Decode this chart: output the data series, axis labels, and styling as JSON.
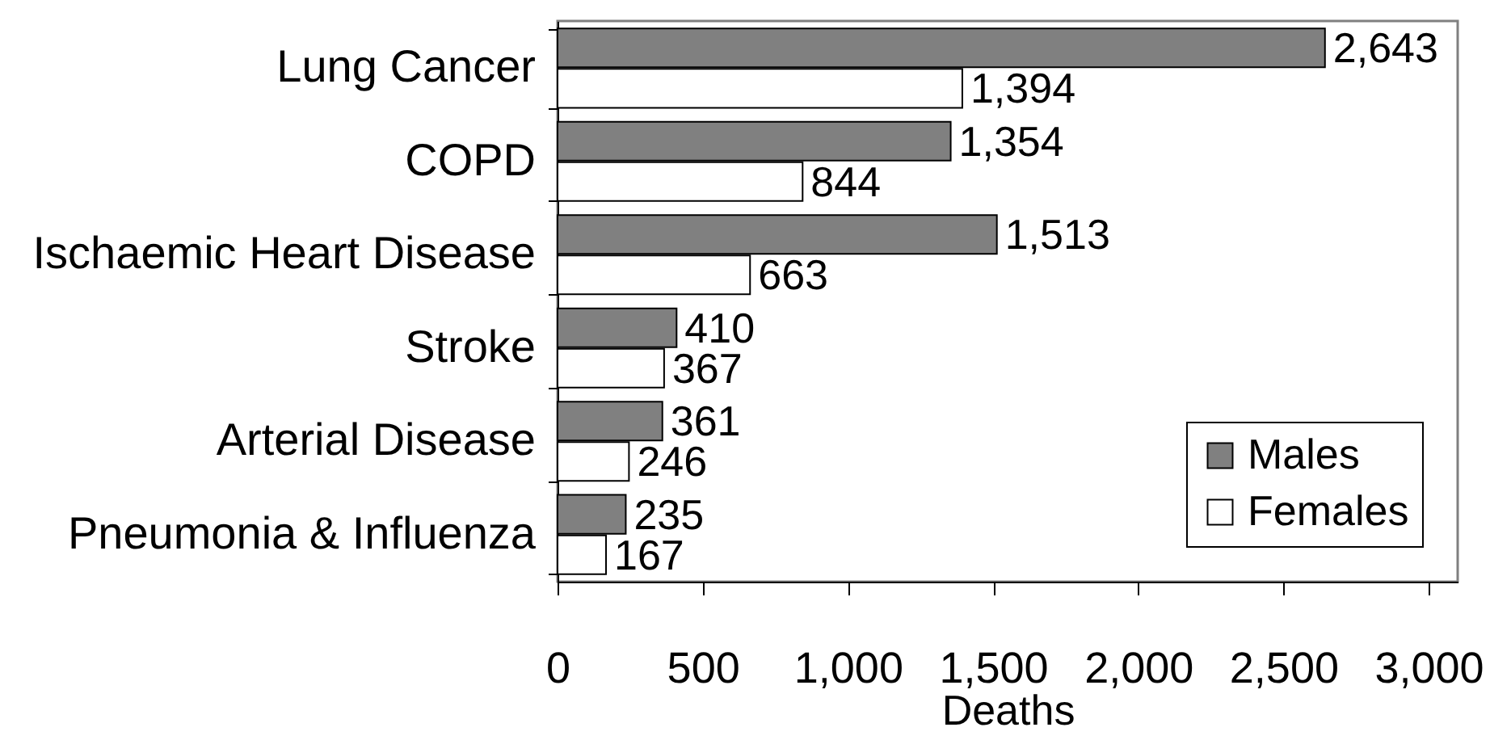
{
  "chart_data": {
    "type": "bar",
    "orientation": "horizontal",
    "categories": [
      "Lung Cancer",
      "COPD",
      "Ischaemic Heart Disease",
      "Stroke",
      "Arterial Disease",
      "Pneumonia & Influenza"
    ],
    "series": [
      {
        "name": "Males",
        "color": "#808080",
        "values": [
          2643,
          1354,
          1513,
          410,
          361,
          235
        ],
        "value_labels": [
          "2,643",
          "1,354",
          "1,513",
          "410",
          "361",
          "235"
        ]
      },
      {
        "name": "Females",
        "color": "#ffffff",
        "values": [
          1394,
          844,
          663,
          367,
          246,
          167
        ],
        "value_labels": [
          "1,394",
          "844",
          "663",
          "367",
          "246",
          "167"
        ]
      }
    ],
    "xlabel": "Deaths",
    "xlim": [
      0,
      3100
    ],
    "xticks": [
      0,
      500,
      {
        "value": 1000,
        "label": "1,000"
      },
      {
        "value": 1500,
        "label": "1,500"
      },
      {
        "value": 2000,
        "label": "2,000"
      },
      {
        "value": 2500,
        "label": "2,500"
      },
      {
        "value": 3000,
        "label": "3,000"
      }
    ],
    "legend": "bottom right",
    "grid": false
  }
}
